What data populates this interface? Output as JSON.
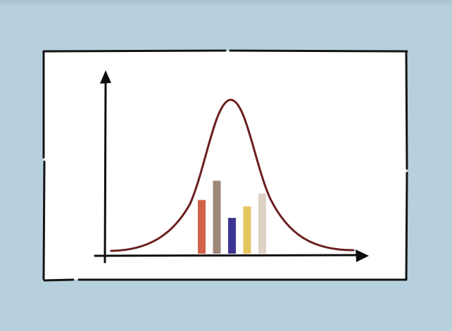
{
  "colors": {
    "background": "#b7d0de",
    "card": "#ffffff",
    "frame": "#141414",
    "axes": "#0d0d0d",
    "curve": "#6b1f1f"
  },
  "bars": [
    {
      "color": "#d0624a",
      "value": 0.42
    },
    {
      "color": "#9e8677",
      "value": 0.57
    },
    {
      "color": "#3d3591",
      "value": 0.28
    },
    {
      "color": "#e5c660",
      "value": 0.37
    },
    {
      "color": "#ded2c6",
      "value": 0.47
    }
  ],
  "icons": {
    "y_arrow": "arrow-up-icon",
    "x_arrow": "arrow-right-icon"
  }
}
